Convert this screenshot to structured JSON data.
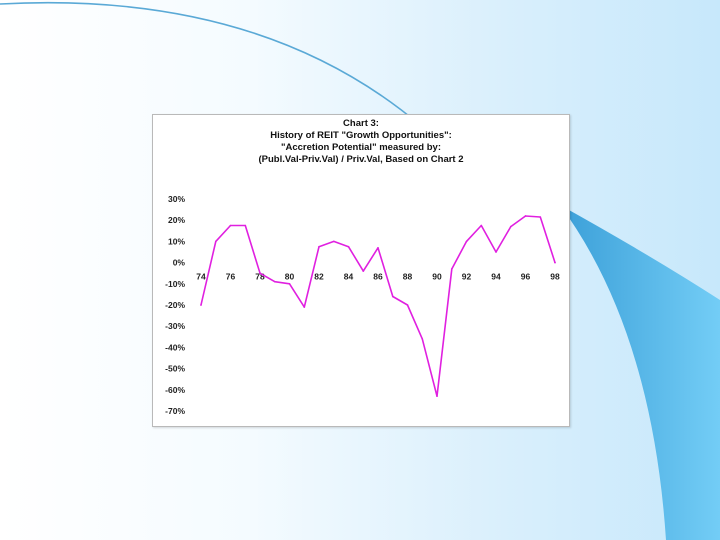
{
  "colors": {
    "series": "#e020e0",
    "arc_outer": "#5aa9d6",
    "arc_fill_dark": "#4aa6dc",
    "arc_fill_light": "#6cc8f4"
  },
  "chart_data": {
    "type": "line",
    "title_lines": [
      "Chart 3:",
      "History of REIT \"Growth Opportunities\":",
      "\"Accretion Potential\" measured by:",
      "(Publ.Val-Priv.Val) / Priv.Val, Based on Chart 2"
    ],
    "xlabel": "",
    "ylabel": "",
    "ylim": [
      -70,
      30
    ],
    "yticks": [
      30,
      20,
      10,
      0,
      -10,
      -20,
      -30,
      -40,
      -50,
      -60,
      -70
    ],
    "ytick_labels": [
      "30%",
      "20%",
      "10%",
      "0%",
      "-10%",
      "-20%",
      "-30%",
      "-40%",
      "-50%",
      "-60%",
      "-70%"
    ],
    "xticks": [
      74,
      76,
      78,
      80,
      82,
      84,
      86,
      88,
      90,
      92,
      94,
      96,
      98
    ],
    "xtick_labels": [
      "74",
      "76",
      "78",
      "80",
      "82",
      "84",
      "86",
      "88",
      "90",
      "92",
      "94",
      "96",
      "98"
    ],
    "grid": false,
    "legend": false,
    "x": [
      74,
      75,
      76,
      77,
      78,
      79,
      80,
      81,
      82,
      83,
      84,
      85,
      86,
      87,
      88,
      89,
      90,
      91,
      92,
      93,
      94,
      95,
      96,
      97,
      98
    ],
    "values": [
      -20,
      10,
      17.5,
      17.5,
      -5,
      -9,
      -10,
      -21,
      7.5,
      10,
      7.5,
      -4,
      7,
      -16,
      -20,
      -36,
      -63,
      -3,
      10,
      17.5,
      5,
      17,
      22,
      21.5,
      0
    ]
  }
}
